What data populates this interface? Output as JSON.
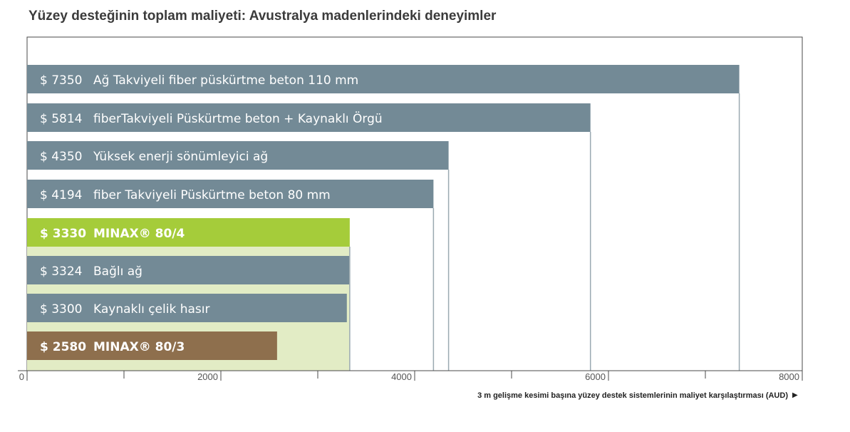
{
  "chart_data": {
    "type": "bar",
    "orientation": "horizontal",
    "title": "Yüzey desteğinin toplam maliyeti: Avustralya madenlerindeki deneyimler",
    "xlabel": "3 m gelişme kesimi başına yüzey destek sistemlerinin maliyet karşılaştırması (AUD)",
    "xlim": [
      0,
      8000
    ],
    "xticks": [
      "0",
      "2000",
      "4000",
      "6000",
      "8000"
    ],
    "grid": false,
    "bars": [
      {
        "value": 7350,
        "value_label": "$ 7350",
        "category": "Ağ Takviyeli fiber püskürtme beton 110 mm",
        "color": "#738a96",
        "highlight": false
      },
      {
        "value": 5814,
        "value_label": "$ 5814",
        "category": "fiberTakviyeli Püskürtme beton + Kaynaklı Örgü",
        "color": "#738a96",
        "highlight": false
      },
      {
        "value": 4350,
        "value_label": "$ 4350",
        "category": "Yüksek enerji sönümleyici ağ",
        "color": "#738a96",
        "highlight": false
      },
      {
        "value": 4194,
        "value_label": "$ 4194",
        "category": "fiber Takviyeli Püskürtme beton 80 mm",
        "color": "#738a96",
        "highlight": false
      },
      {
        "value": 3330,
        "value_label": "$ 3330",
        "category": "MINAX® 80/4",
        "color": "#a5cc3a",
        "shadow": "#e2ecc5",
        "highlight": true
      },
      {
        "value": 3324,
        "value_label": "$ 3324",
        "category": "Bağlı ağ",
        "color": "#738a96",
        "highlight": false
      },
      {
        "value": 3300,
        "value_label": "$ 3300",
        "category": "Kaynaklı çelik hasır",
        "color": "#738a96",
        "highlight": false
      },
      {
        "value": 2580,
        "value_label": "$ 2580",
        "category": "MINAX® 80/3",
        "color": "#8e6f4d",
        "shadow": "#efe6de",
        "highlight": true
      }
    ]
  }
}
